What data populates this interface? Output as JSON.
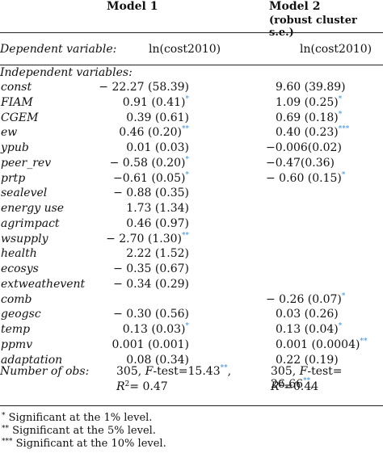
{
  "header": {
    "model1": "Model 1",
    "model2": "Model 2",
    "model2_sub": "(robust cluster s.e.)"
  },
  "dependent": {
    "label": "Dependent variable:",
    "model1": "ln(cost2010)",
    "model2": "ln(cost2010)"
  },
  "independent_label": "Independent variables:",
  "rows": [
    {
      "var": "const",
      "m1": "− 22.27 (58.39)",
      "m1_sig": "",
      "m2": "9.60 (39.89)",
      "m2_sig": ""
    },
    {
      "var": "FIAM",
      "m1": "0.91 (0.41)",
      "m1_sig": "*",
      "m2": "1.09 (0.25)",
      "m2_sig": "*"
    },
    {
      "var": "CGEM",
      "m1": "0.39 (0.61)",
      "m1_sig": "",
      "m2": "0.69 (0.18)",
      "m2_sig": "*"
    },
    {
      "var": "ew",
      "m1": "0.46 (0.20)",
      "m1_sig": "**",
      "m2": "0.40 (0.23)",
      "m2_sig": "***"
    },
    {
      "var": "ypub",
      "m1": "0.01 (0.03)",
      "m1_sig": "",
      "m2": "−0.006(0.02)",
      "m2_sig": ""
    },
    {
      "var": "peer_rev",
      "m1": "− 0.58 (0.20)",
      "m1_sig": "*",
      "m2": "−0.47(0.36)",
      "m2_sig": ""
    },
    {
      "var": "prtp",
      "m1": "−0.61 (0.05)",
      "m1_sig": "*",
      "m2": "− 0.60 (0.15)",
      "m2_sig": "*"
    },
    {
      "var": "sealevel",
      "m1": "− 0.88 (0.35)",
      "m1_sig": "",
      "m2": "",
      "m2_sig": ""
    },
    {
      "var": "energy use",
      "m1": "1.73 (1.34)",
      "m1_sig": "",
      "m2": "",
      "m2_sig": ""
    },
    {
      "var": "agrimpact",
      "m1": "0.46 (0.97)",
      "m1_sig": "",
      "m2": "",
      "m2_sig": ""
    },
    {
      "var": "wsupply",
      "m1": "− 2.70 (1.30)",
      "m1_sig": "**",
      "m2": "",
      "m2_sig": ""
    },
    {
      "var": "health",
      "m1": "2.22 (1.52)",
      "m1_sig": "",
      "m2": "",
      "m2_sig": ""
    },
    {
      "var": "ecosys",
      "m1": "− 0.35 (0.67)",
      "m1_sig": "",
      "m2": "",
      "m2_sig": ""
    },
    {
      "var": "extweathevent",
      "m1": "− 0.34 (0.29)",
      "m1_sig": "",
      "m2": "",
      "m2_sig": ""
    },
    {
      "var": "comb",
      "m1": "",
      "m1_sig": "",
      "m2": "− 0.26 (0.07)",
      "m2_sig": "*"
    },
    {
      "var": "geogsc",
      "m1": "− 0.30 (0.56)",
      "m1_sig": "",
      "m2": "0.03 (0.26)",
      "m2_sig": ""
    },
    {
      "var": "temp",
      "m1": "0.13 (0.03)",
      "m1_sig": "*",
      "m2": "0.13 (0.04)",
      "m2_sig": "*"
    },
    {
      "var": "ppmv",
      "m1": "0.001 (0.001)",
      "m1_sig": "",
      "m2": "0.001 (0.0004)",
      "m2_sig": "**"
    },
    {
      "var": "adaptation",
      "m1": "0.08 (0.34)",
      "m1_sig": "",
      "m2": "0.22 (0.19)",
      "m2_sig": ""
    }
  ],
  "obs": {
    "label": "Number of obs:",
    "m1_n": "305, ",
    "m1_f_label": "F",
    "m1_f": "-test=15.43",
    "m1_f_sig": "**",
    "m1_f_tail": ",",
    "m1_r2_label": "R",
    "m1_r2_exp": "2",
    "m1_r2": "= 0.47",
    "m2_n": "305, ",
    "m2_f_label": "F",
    "m2_f": "-test= 26.66",
    "m2_f_sig": "**",
    "m2_f_tail": ",",
    "m2_r2_label": "R",
    "m2_r2_exp": "2",
    "m2_r2": "=0.44"
  },
  "notes": [
    {
      "mark": "*",
      "text": " Significant at the 1% level."
    },
    {
      "mark": "**",
      "text": " Significant at the 5% level."
    },
    {
      "mark": "***",
      "text": " Significant at the 10% level."
    }
  ]
}
